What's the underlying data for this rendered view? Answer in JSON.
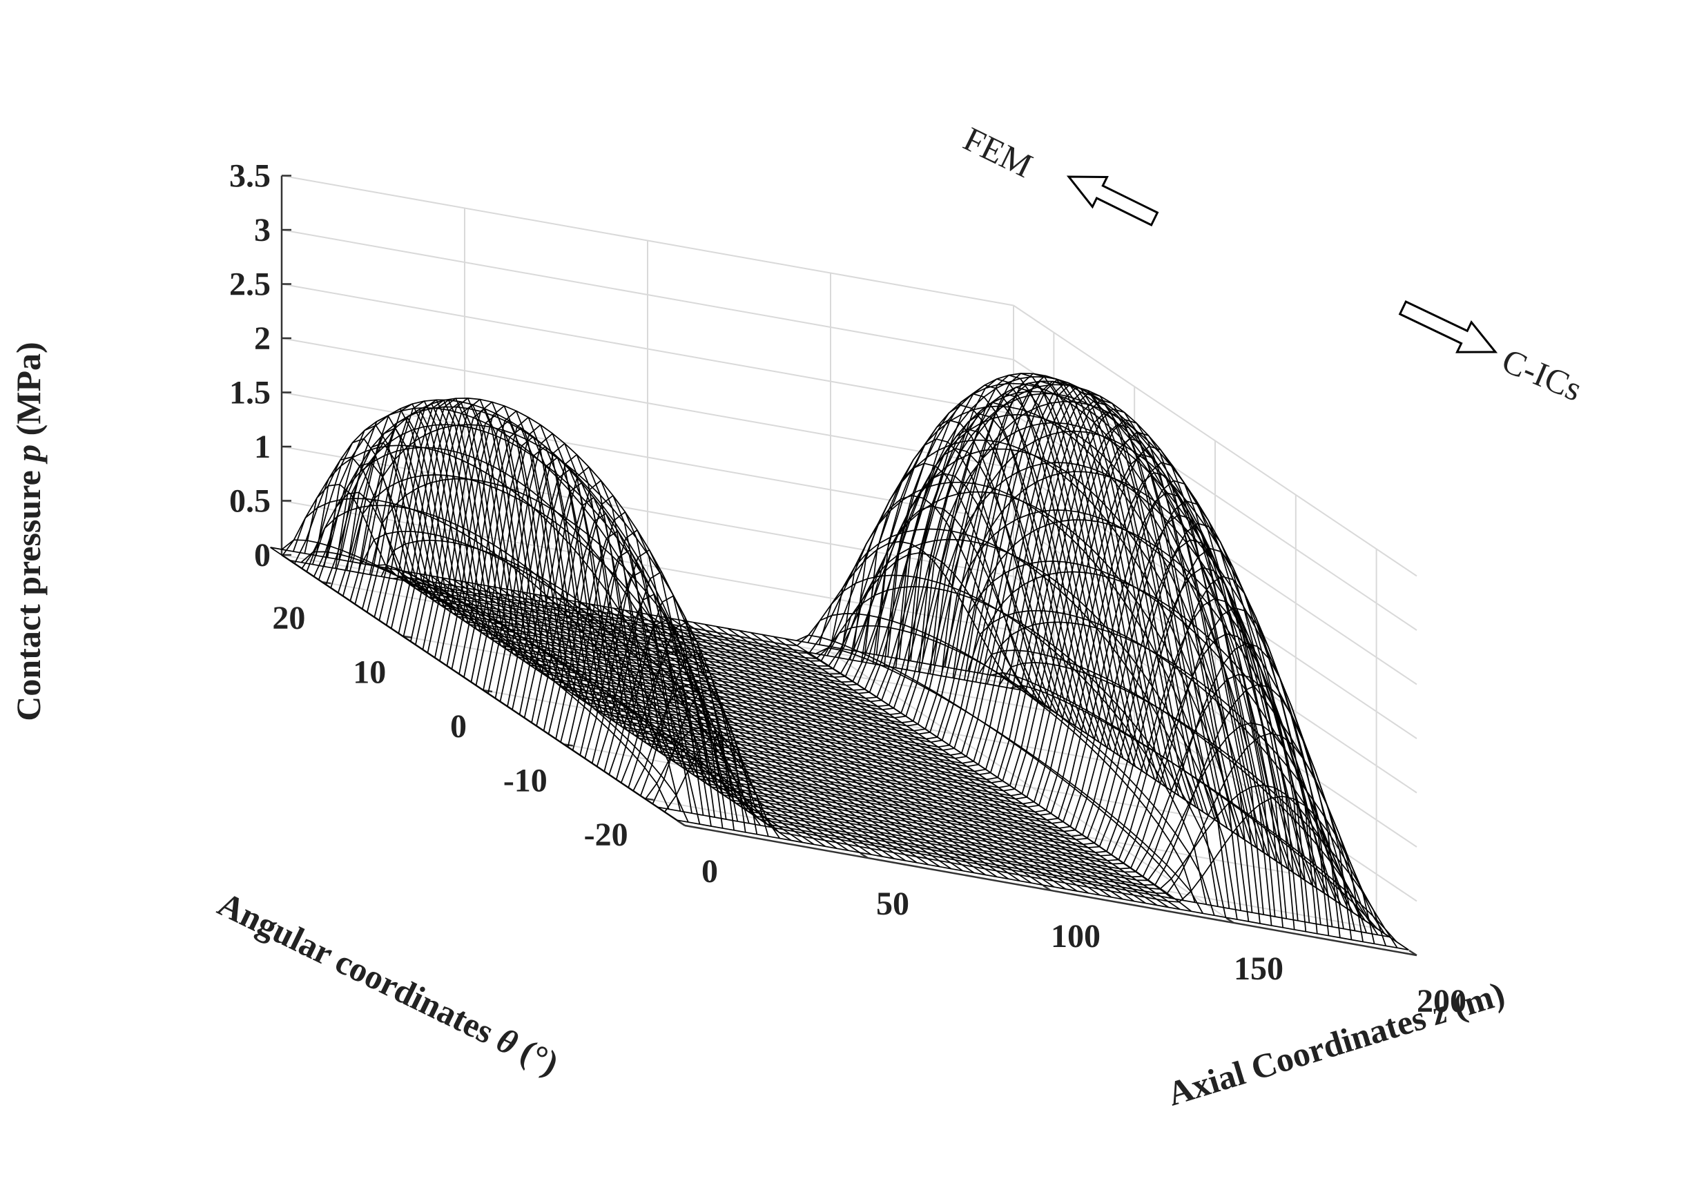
{
  "chart_data": {
    "type": "surface",
    "zlabel": {
      "prefix": "Contact pressure ",
      "symbol": "p",
      "suffix": " (MPa)"
    },
    "xlabel": {
      "prefix": "Axial Coordinates ",
      "symbol": "z",
      "suffix": " (m)"
    },
    "ylabel": {
      "prefix": "Angular coordinates ",
      "symbol": "θ",
      "suffix": " (°)"
    },
    "z_ticks": [
      "0",
      "0.5",
      "1",
      "1.5",
      "2",
      "2.5",
      "3",
      "3.5"
    ],
    "z_tick_values": [
      0,
      0.5,
      1,
      1.5,
      2,
      2.5,
      3,
      3.5
    ],
    "x_ticks": [
      "0",
      "50",
      "100",
      "150",
      "200"
    ],
    "x_tick_values": [
      0,
      50,
      100,
      150,
      200
    ],
    "y_ticks": [
      "20",
      "10",
      "0",
      "-10",
      "-20"
    ],
    "y_tick_values": [
      20,
      10,
      0,
      -10,
      -20
    ],
    "xlim": [
      0,
      200
    ],
    "ylim": [
      -25,
      25
    ],
    "zlim": [
      0,
      3.5
    ],
    "grid": true,
    "series": [
      {
        "name": "FEM",
        "z_range": [
          0,
          200
        ],
        "peaks": [
          {
            "z_start": 0,
            "z_end": 30,
            "theta_center": 0,
            "peak_pressure": 2.55
          },
          {
            "z_start": 140,
            "z_end": 200,
            "theta_center": 0,
            "peak_pressure": 3.7
          }
        ]
      },
      {
        "name": "C-ICs",
        "z_range": [
          0,
          200
        ],
        "peaks": [
          {
            "z_start": 0,
            "z_end": 30,
            "theta_center": 0,
            "peak_pressure": 2.4
          },
          {
            "z_start": 140,
            "z_end": 200,
            "theta_center": 0,
            "peak_pressure": 3.65
          }
        ]
      }
    ],
    "annotations": [
      {
        "text": "FEM",
        "arrow_direction": "up-left"
      },
      {
        "text": "C-ICs",
        "arrow_direction": "down-right"
      }
    ]
  }
}
